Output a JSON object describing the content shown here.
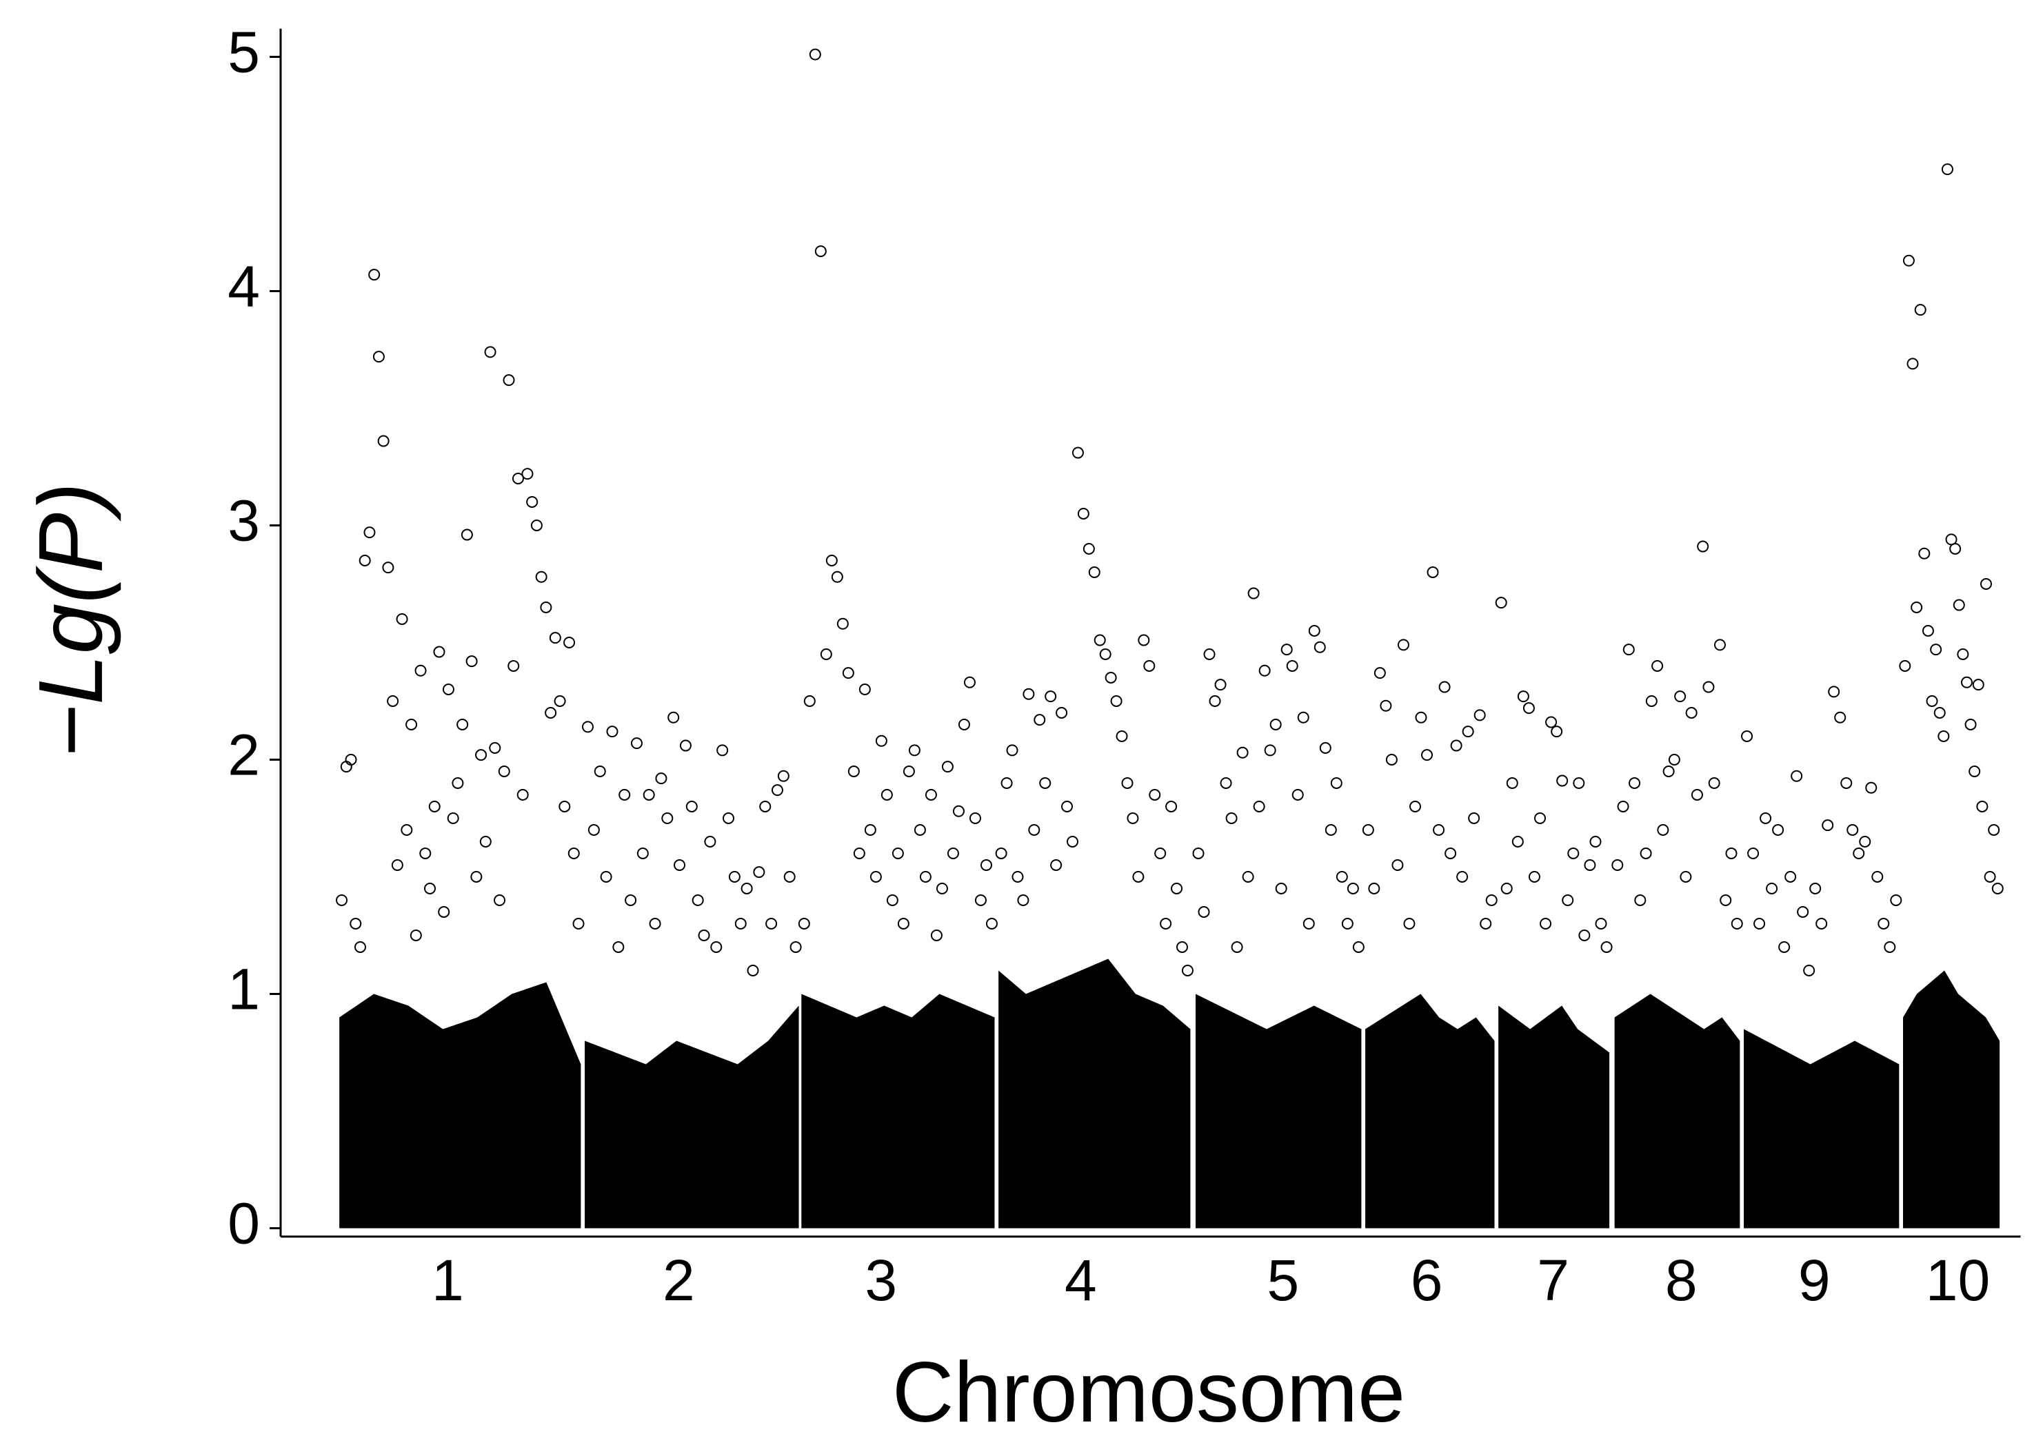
{
  "chart_data": {
    "type": "scatter",
    "ylabel": "−Lg(P)",
    "xlabel": "Chromosome",
    "color": "#000000",
    "ylim": [
      -0.03,
      5.12
    ],
    "yticks": [
      0,
      1,
      2,
      3,
      4,
      5
    ],
    "categories": [
      "1",
      "2",
      "3",
      "4",
      "5",
      "6",
      "7",
      "8",
      "9",
      "10"
    ],
    "chromosomes": [
      {
        "band": [
          0.9,
          1.0,
          0.95,
          0.85,
          0.9,
          1.0,
          1.05,
          0.7
        ],
        "values": [
          1.4,
          1.97,
          2.0,
          1.3,
          1.2,
          2.85,
          2.97,
          4.07,
          3.72,
          3.36,
          2.82,
          2.25,
          1.55,
          2.6,
          1.7,
          2.15,
          1.25,
          2.38,
          1.6,
          1.45,
          1.8,
          2.46,
          1.35,
          2.3,
          1.75,
          1.9,
          2.15,
          2.96,
          2.42,
          1.5,
          2.02,
          1.65,
          3.74,
          2.05,
          1.4,
          1.95,
          3.62,
          2.4,
          3.2,
          1.85,
          3.22,
          3.1,
          3.0,
          2.78,
          2.65,
          2.2,
          2.52,
          2.25,
          1.8,
          2.5,
          1.6,
          1.3
        ]
      },
      {
        "band": [
          0.8,
          0.75,
          0.7,
          0.8,
          0.75,
          0.7,
          0.8,
          0.95
        ],
        "values": [
          2.14,
          1.7,
          1.95,
          1.5,
          2.12,
          1.2,
          1.85,
          1.4,
          2.07,
          1.6,
          1.85,
          1.3,
          1.92,
          1.75,
          2.18,
          1.55,
          2.06,
          1.8,
          1.4,
          1.25,
          1.65,
          1.2,
          2.04,
          1.75,
          1.5,
          1.3,
          1.45,
          1.1,
          1.52,
          1.8,
          1.3,
          1.87,
          1.93,
          1.5,
          1.2
        ]
      },
      {
        "band": [
          1.0,
          0.95,
          0.9,
          0.95,
          0.9,
          1.0,
          0.95,
          0.9
        ],
        "values": [
          1.3,
          2.25,
          5.01,
          4.17,
          2.45,
          2.85,
          2.78,
          2.58,
          2.37,
          1.95,
          1.6,
          2.3,
          1.7,
          1.5,
          2.08,
          1.85,
          1.4,
          1.6,
          1.3,
          1.95,
          2.04,
          1.7,
          1.5,
          1.85,
          1.25,
          1.45,
          1.97,
          1.6,
          1.78,
          2.15,
          2.33,
          1.75,
          1.4,
          1.55,
          1.3
        ]
      },
      {
        "band": [
          1.1,
          1.0,
          1.05,
          1.1,
          1.15,
          1.0,
          0.95,
          0.85
        ],
        "values": [
          1.6,
          1.9,
          2.04,
          1.5,
          1.4,
          2.28,
          1.7,
          2.17,
          1.9,
          2.27,
          1.55,
          2.2,
          1.8,
          1.65,
          3.31,
          3.05,
          2.9,
          2.8,
          2.51,
          2.45,
          2.35,
          2.25,
          2.1,
          1.9,
          1.75,
          1.5,
          2.51,
          2.4,
          1.85,
          1.6,
          1.3,
          1.8,
          1.45,
          1.2,
          1.1
        ]
      },
      {
        "band": [
          1.0,
          0.95,
          0.9,
          0.85,
          0.9,
          0.95,
          0.9,
          0.85
        ],
        "values": [
          1.6,
          1.35,
          2.45,
          2.25,
          2.32,
          1.9,
          1.75,
          1.2,
          2.03,
          1.5,
          2.71,
          1.8,
          2.38,
          2.04,
          2.15,
          1.45,
          2.47,
          2.4,
          1.85,
          2.18,
          1.3,
          2.55,
          2.48,
          2.05,
          1.7,
          1.9,
          1.5,
          1.3,
          1.45,
          1.2
        ]
      },
      {
        "band": [
          0.85,
          0.9,
          0.95,
          1.0,
          0.9,
          0.85,
          0.9,
          0.8
        ],
        "values": [
          1.7,
          1.45,
          2.37,
          2.23,
          2.0,
          1.55,
          2.49,
          1.3,
          1.8,
          2.18,
          2.02,
          2.8,
          1.7,
          2.31,
          1.6,
          2.06,
          1.5,
          2.12,
          1.75,
          2.19,
          1.3,
          1.4
        ]
      },
      {
        "band": [
          0.95,
          0.9,
          0.85,
          0.9,
          0.95,
          0.85,
          0.8,
          0.75
        ],
        "values": [
          2.67,
          1.45,
          1.9,
          1.65,
          2.27,
          2.22,
          1.5,
          1.75,
          1.3,
          2.16,
          2.12,
          1.91,
          1.4,
          1.6,
          1.9,
          1.25,
          1.55,
          1.65,
          1.3,
          1.2
        ]
      },
      {
        "band": [
          0.9,
          0.95,
          1.0,
          0.95,
          0.9,
          0.85,
          0.9,
          0.8
        ],
        "values": [
          1.55,
          1.8,
          2.47,
          1.9,
          1.4,
          1.6,
          2.25,
          2.4,
          1.7,
          1.95,
          2.0,
          2.27,
          1.5,
          2.2,
          1.85,
          2.91,
          2.31,
          1.9,
          2.49,
          1.4,
          1.6,
          1.3
        ]
      },
      {
        "band": [
          0.85,
          0.8,
          0.75,
          0.7,
          0.75,
          0.8,
          0.75,
          0.7
        ],
        "values": [
          2.1,
          1.6,
          1.3,
          1.75,
          1.45,
          1.7,
          1.2,
          1.5,
          1.93,
          1.35,
          1.1,
          1.45,
          1.3,
          1.72,
          2.29,
          2.18,
          1.9,
          1.7,
          1.6,
          1.65,
          1.88,
          1.5,
          1.3,
          1.2,
          1.4
        ]
      },
      {
        "band": [
          0.9,
          1.0,
          1.05,
          1.1,
          1.0,
          0.95,
          0.9,
          0.8
        ],
        "values": [
          2.4,
          4.13,
          3.69,
          2.65,
          3.92,
          2.88,
          2.55,
          2.25,
          2.47,
          2.2,
          2.1,
          4.52,
          2.94,
          2.9,
          2.66,
          2.45,
          2.33,
          2.15,
          1.95,
          2.32,
          1.8,
          2.75,
          1.5,
          1.7,
          1.45
        ]
      }
    ]
  }
}
